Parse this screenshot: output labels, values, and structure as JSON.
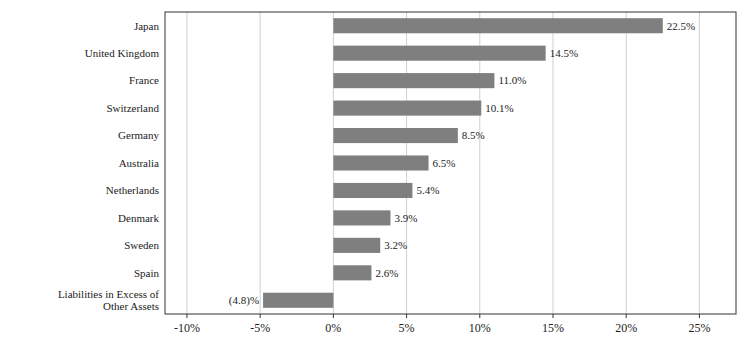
{
  "chart_data": {
    "type": "bar",
    "orientation": "horizontal",
    "categories": [
      "Liabilities in Excess of\nOther Assets",
      "Spain",
      "Sweden",
      "Denmark",
      "Netherlands",
      "Australia",
      "Germany",
      "Switzerland",
      "France",
      "United Kingdom",
      "Japan"
    ],
    "values": [
      -4.8,
      2.6,
      3.2,
      3.9,
      5.4,
      6.5,
      8.5,
      10.1,
      11.0,
      14.5,
      22.5
    ],
    "value_labels": [
      "(4.8)%",
      "2.6%",
      "3.2%",
      "3.9%",
      "5.4%",
      "6.5%",
      "8.5%",
      "10.1%",
      "11.0%",
      "14.5%",
      "22.5%"
    ],
    "color": "#7f7f7f",
    "xlim": [
      -11.5,
      27.5
    ],
    "xticks": [
      {
        "value": -10,
        "label": "-10%"
      },
      {
        "value": -5,
        "label": "-5%"
      },
      {
        "value": 0,
        "label": "0%"
      },
      {
        "value": 5,
        "label": "5%"
      },
      {
        "value": 10,
        "label": "10%"
      },
      {
        "value": 15,
        "label": "15%"
      },
      {
        "value": 20,
        "label": "20%"
      },
      {
        "value": 25,
        "label": "25%"
      }
    ],
    "grid": true,
    "data_labels": true
  }
}
